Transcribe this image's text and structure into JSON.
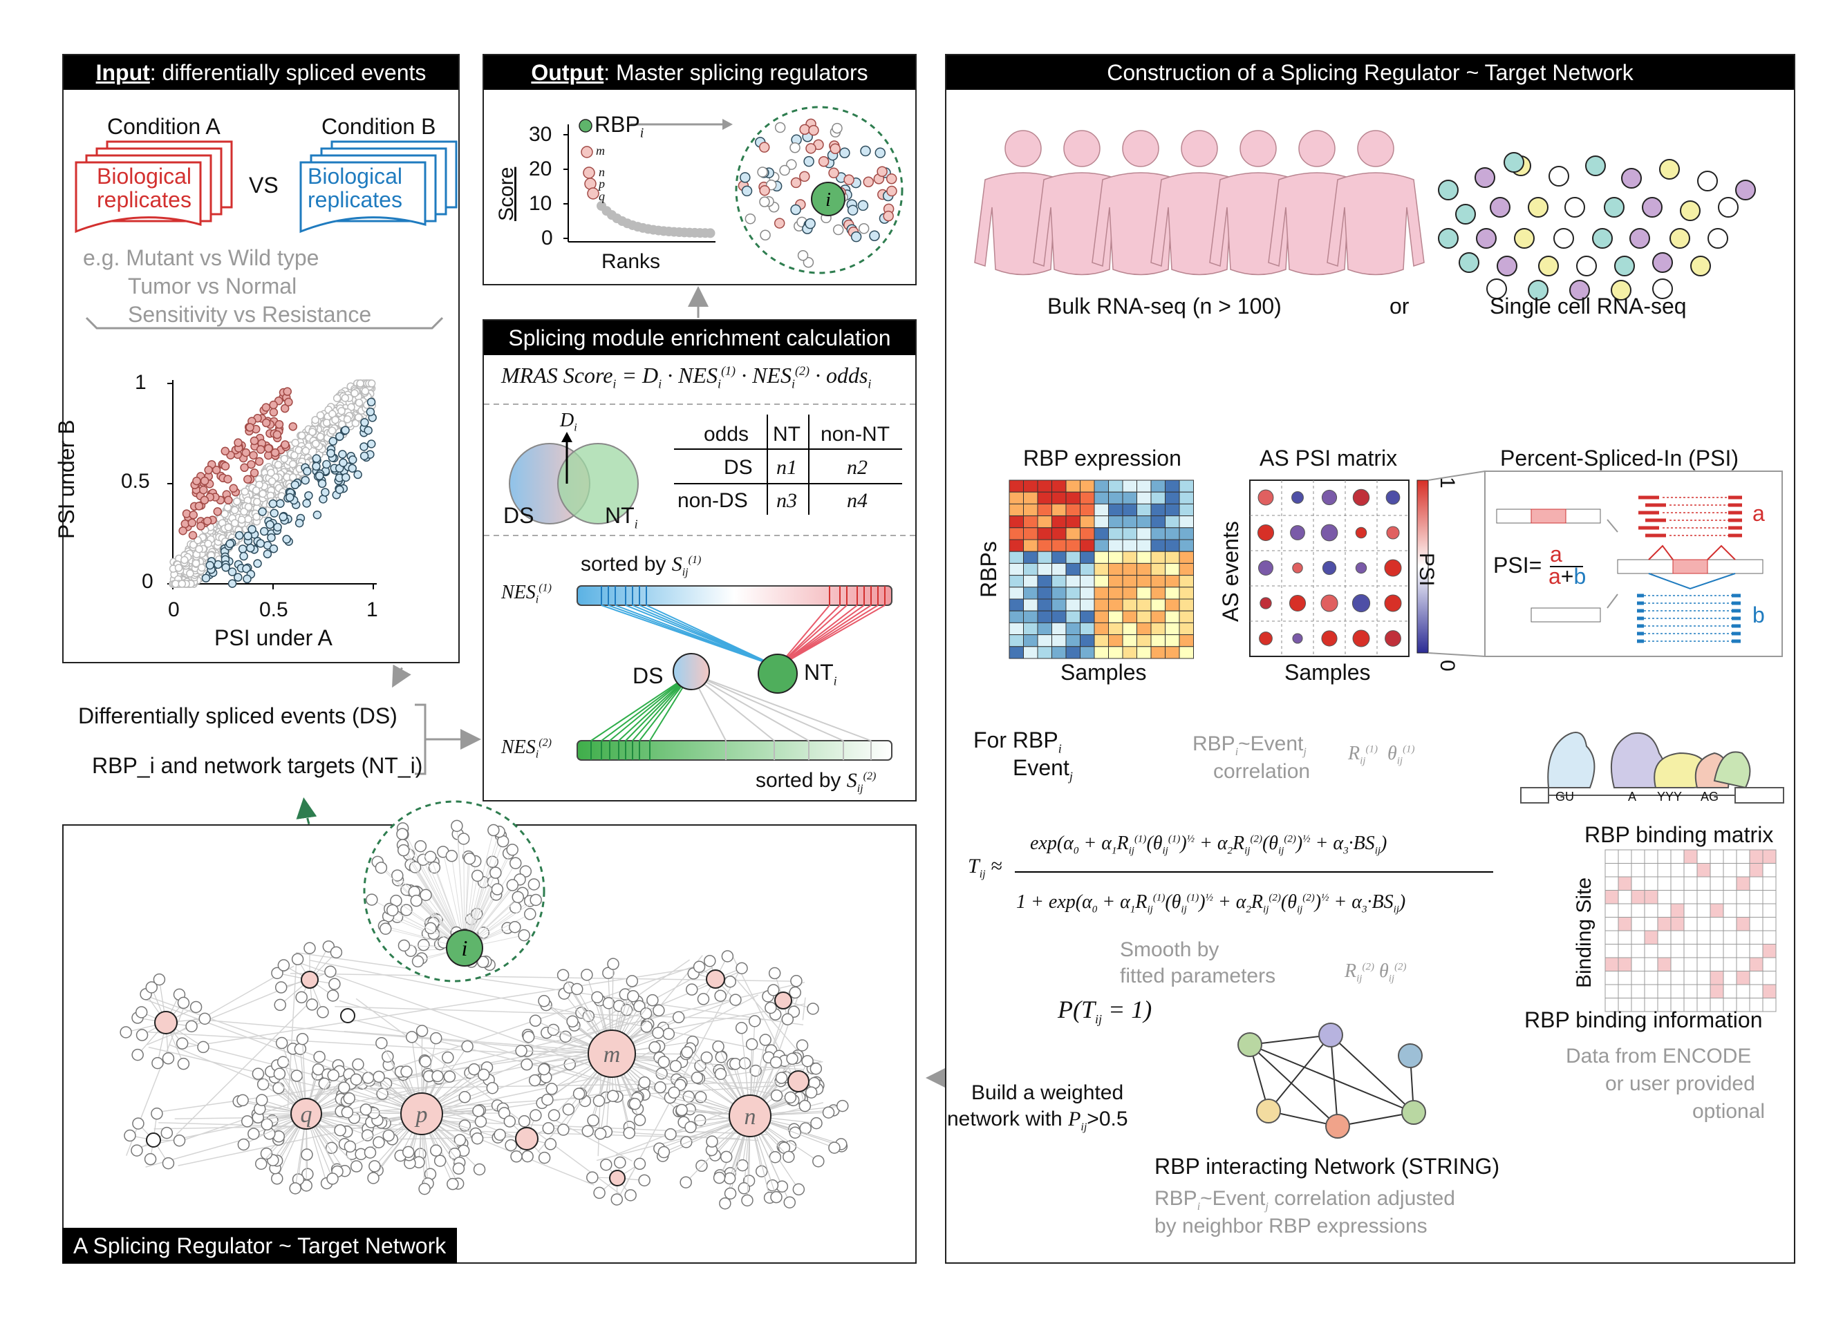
{
  "input": {
    "title_bold": "Input",
    "title_rest": ": differentially spliced events",
    "condition_a": "Condition A",
    "condition_b": "Condition B",
    "replicates_a": "Biological replicates",
    "replicates_b": "Biological replicates",
    "vs": "VS",
    "eg_line1": "e.g. Mutant vs Wild type",
    "eg_line2": "Tumor vs  Normal",
    "eg_line3": "Sensitivity vs Resistance",
    "scatter_xlabel": "PSI under A",
    "scatter_ylabel": "PSI under B",
    "ticks": [
      "0",
      "0.5",
      "1"
    ]
  },
  "output": {
    "title_bold": "Output",
    "title_rest": ": Master splicing regulators",
    "ylabel": "Score",
    "xlabel": "Ranks",
    "yticks": [
      "30",
      "20",
      "10",
      "0"
    ],
    "rbp_label": "RBP",
    "rbp_sub": "i",
    "point_labels": [
      "m",
      "n",
      "p",
      "q"
    ],
    "hub_label": "i"
  },
  "enrichment": {
    "title": "Splicing module enrichment calculation",
    "formula": "MRAS Score_i = D_i · NES_i^(1) · NES_i^(2) · odds_i",
    "d_label": "D",
    "ds_label": "DS",
    "nt_label": "NT",
    "table_header": [
      "odds",
      "NT",
      "non-NT"
    ],
    "table_rows": [
      [
        "DS",
        "n1",
        "n2"
      ],
      [
        "non-DS",
        "n3",
        "n4"
      ]
    ],
    "sorted1": "sorted by S_ij^(1)",
    "sorted2": "sorted by S_ij^(2)",
    "nes1": "NES_i^(1)",
    "nes2": "NES_i^(2)",
    "node_ds": "DS",
    "node_nt": "NT"
  },
  "middle": {
    "ds_events": "Differentially spliced events (DS)",
    "rbp_targets": "RBP_i and network targets (NT_i)"
  },
  "network": {
    "label": "A Splicing Regulator ~ Target Network",
    "hub_labels": [
      "i",
      "m",
      "p",
      "q",
      "n"
    ]
  },
  "construction": {
    "title": "Construction of a Splicing Regulator ~ Target Network",
    "bulk": "Bulk RNA-seq (n > 100)",
    "or": "or",
    "single": "Single cell RNA-seq",
    "rbp_expression": "RBP expression",
    "as_psi": "AS PSI matrix",
    "psi_title": "Percent-Spliced-In (PSI)",
    "rbps": "RBPs",
    "as_events": "AS events",
    "samples": "Samples",
    "psi_axis": "PSI",
    "psi_min": "0",
    "psi_max": "1",
    "psi_formula": "PSI=",
    "psi_a": "a",
    "psi_ab": "a+b",
    "iso_a": "a",
    "iso_b": "b",
    "for_rbp": "For RBP",
    "event": "Event",
    "correlation": "RBP_i~Event_j correlation",
    "r_theta": "R_ij^(1) θ_ij^(1)",
    "r_theta2": "R_ij^(2) θ_ij^(2)",
    "tij_formula": "T_ij ≈ exp(α0 + α1 R(1)(θ(1))^½ + α2 R(2)(θ(2))^½ + α3·BS) / (1 + exp(...))",
    "smooth": "Smooth by fitted parameters",
    "ptij": "P(T_ij = 1)",
    "build1": "Build a weighted",
    "build2": "network with P_ij>0.5",
    "string_title": "RBP interacting Network (STRING)",
    "string_note1": "RBP_i~Event_j correlation adjusted",
    "string_note2": "by neighbor RBP expressions",
    "binding_matrix": "RBP binding matrix",
    "binding_site": "Binding  Site",
    "binding_info": "RBP binding information",
    "encode1": "Data from ENCODE",
    "encode2": "or user provided",
    "encode3": "optional",
    "motif_gu": "GU",
    "motif_a": "A",
    "motif_yyy": "YYY",
    "motif_ag": "AG"
  },
  "colors": {
    "red": "#d3302f",
    "blue": "#1f7bbf",
    "green": "#4caf50",
    "pink": "#f4c7c3",
    "gray": "#999999"
  }
}
